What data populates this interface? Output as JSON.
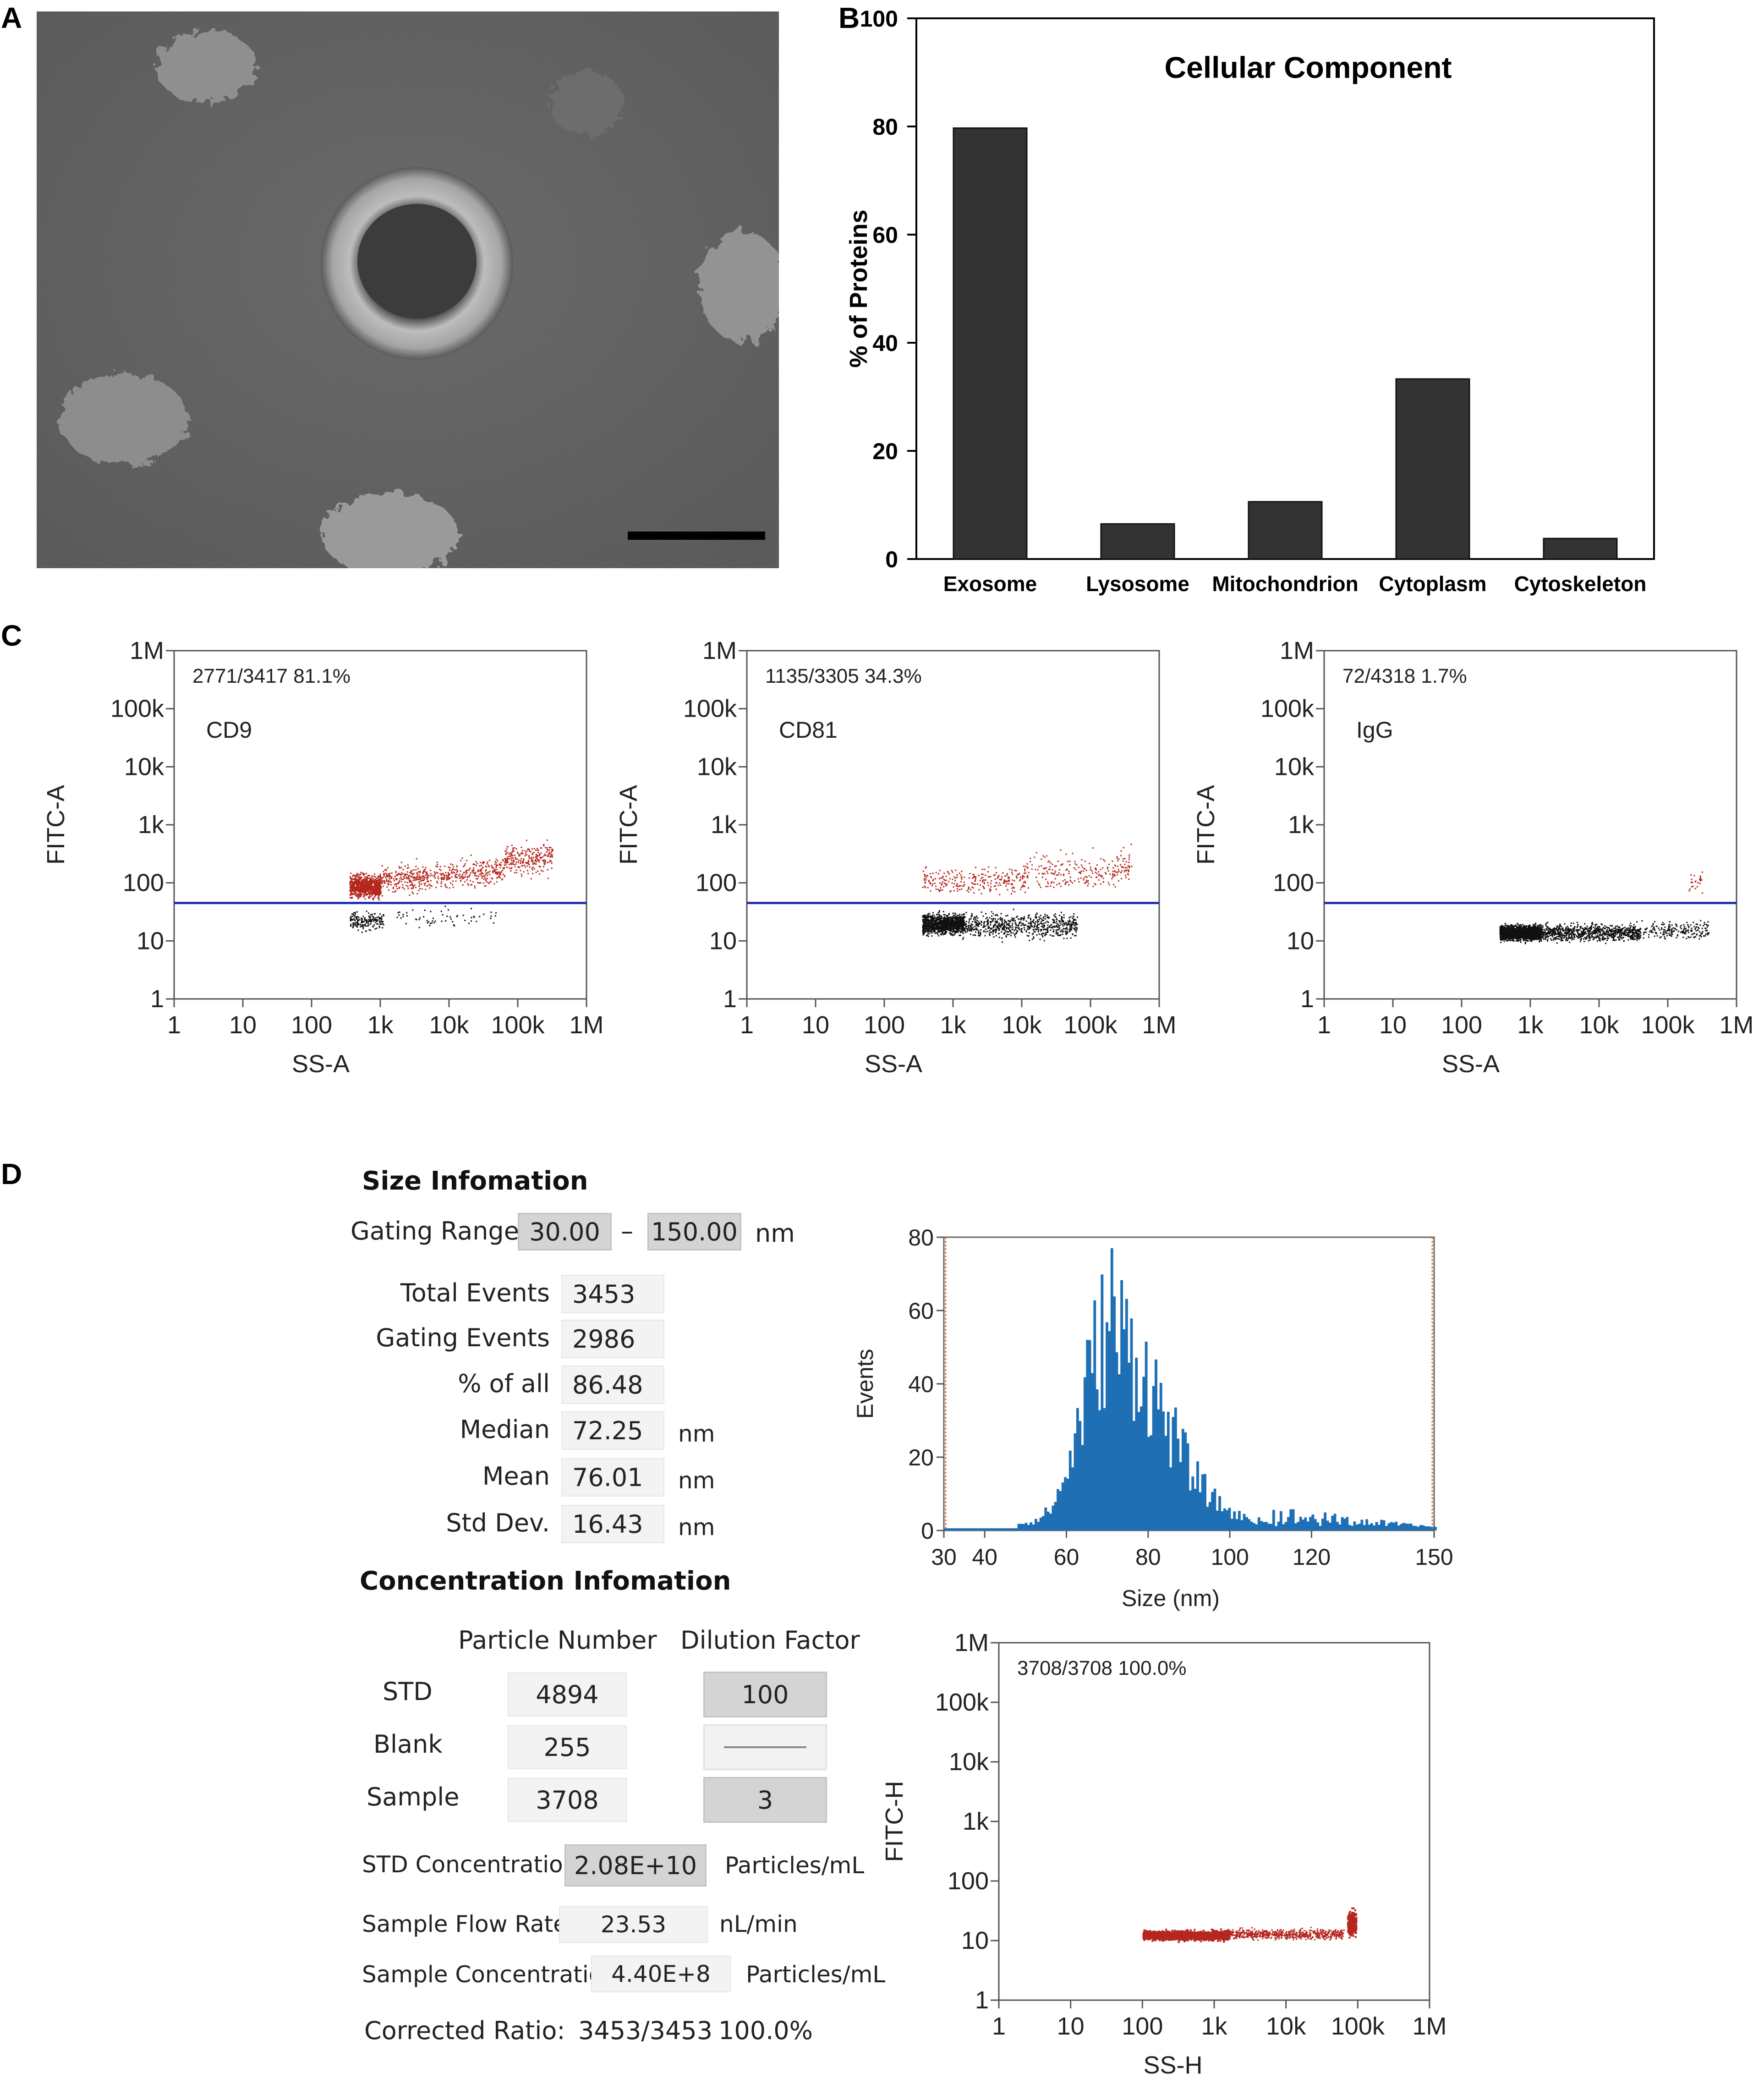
{
  "panels": {
    "a": "A",
    "b": "B",
    "c": "C",
    "d": "D"
  },
  "panel_a": {
    "description": "negative-stain TEM image of exosomes with scale bar"
  },
  "chart_data": [
    {
      "id": "cellular-component",
      "type": "bar",
      "title": "Cellular Component",
      "ylabel": "% of Proteins",
      "xlabel": "",
      "categories": [
        "Exosome",
        "Lysosome",
        "Mitochondrion",
        "Cytoplasm",
        "Cytoskeleton"
      ],
      "values": [
        79.7,
        6.5,
        10.6,
        33.3,
        3.8
      ],
      "ylim": [
        0,
        100
      ],
      "yticks": [
        0,
        20,
        40,
        60,
        80,
        100
      ],
      "bar_color": "#333333"
    },
    {
      "id": "cd9-scatter",
      "type": "scatter",
      "scale": "log",
      "xlabel": "SS-A",
      "ylabel": "FITC-A",
      "annotation": "2771/3417  81.1%",
      "marker_label": "CD9",
      "tick_labels": [
        "1",
        "10",
        "100",
        "1k",
        "10k",
        "100k",
        "1M"
      ],
      "xlim": [
        1,
        1000000
      ],
      "ylim": [
        1,
        1000000
      ],
      "threshold_y": 45
    },
    {
      "id": "cd81-scatter",
      "type": "scatter",
      "scale": "log",
      "xlabel": "SS-A",
      "ylabel": "FITC-A",
      "annotation": "1135/3305  34.3%",
      "marker_label": "CD81",
      "tick_labels": [
        "1",
        "10",
        "100",
        "1k",
        "10k",
        "100k",
        "1M"
      ],
      "xlim": [
        1,
        1000000
      ],
      "ylim": [
        1,
        1000000
      ],
      "threshold_y": 45
    },
    {
      "id": "igg-scatter",
      "type": "scatter",
      "scale": "log",
      "xlabel": "SS-A",
      "ylabel": "FITC-A",
      "annotation": "72/4318  1.7%",
      "marker_label": "IgG",
      "tick_labels": [
        "1",
        "10",
        "100",
        "1k",
        "10k",
        "100k",
        "1M"
      ],
      "xlim": [
        1,
        1000000
      ],
      "ylim": [
        1,
        1000000
      ],
      "threshold_y": 45
    },
    {
      "id": "size-histogram",
      "type": "bar",
      "xlabel": "Size (nm)",
      "ylabel": "Events",
      "xticks": [
        30,
        40,
        60,
        80,
        100,
        120,
        150
      ],
      "yticks": [
        0,
        20,
        40,
        60,
        80
      ],
      "xlim": [
        30,
        150
      ],
      "ylim": [
        0,
        80
      ],
      "bar_color": "#1f6fb5",
      "gate_color": "#e06a4a"
    },
    {
      "id": "ssh-scatter",
      "type": "scatter",
      "scale": "log",
      "xlabel": "SS-H",
      "ylabel": "FITC-H",
      "annotation": "3708/3708  100.0%",
      "tick_labels": [
        "1",
        "10",
        "100",
        "1k",
        "10k",
        "100k",
        "1M"
      ],
      "xlim": [
        1,
        1000000
      ],
      "ylim": [
        1,
        1000000
      ]
    }
  ],
  "size_info": {
    "title": "Size Infomation",
    "gating_label": "Gating Range",
    "gating_low": "30.00",
    "gating_dash": "–",
    "gating_high": "150.00",
    "gating_unit": "nm",
    "rows": [
      {
        "label": "Total  Events",
        "value": "3453",
        "unit": ""
      },
      {
        "label": "Gating Events",
        "value": "2986",
        "unit": ""
      },
      {
        "label": "% of all",
        "value": "86.48",
        "unit": ""
      },
      {
        "label": "Median",
        "value": "72.25",
        "unit": "nm"
      },
      {
        "label": "Mean",
        "value": "76.01",
        "unit": "nm"
      },
      {
        "label": "Std Dev.",
        "value": "16.43",
        "unit": "nm"
      }
    ]
  },
  "conc_info": {
    "title": "Concentration Infomation",
    "col_particle": "Particle Number",
    "col_dilution": "Dilution Factor",
    "rows": [
      {
        "label": "STD",
        "particle": "4894",
        "dilution": "100"
      },
      {
        "label": "Blank",
        "particle": "255",
        "dilution": ""
      },
      {
        "label": "Sample",
        "particle": "3708",
        "dilution": "3"
      }
    ],
    "std_conc_label": "STD Concentration",
    "std_conc_value": "2.08E+10",
    "std_conc_unit": "Particles/mL",
    "flow_label": "Sample Flow Rate",
    "flow_value": "23.53",
    "flow_unit": "nL/min",
    "sample_conc_label": "Sample Concentration",
    "sample_conc_value": "4.40E+8",
    "sample_conc_unit": "Particles/mL",
    "corrected_label": "Corrected Ratio:",
    "corrected_value": "3453/3453",
    "corrected_pct": "100.0%"
  }
}
